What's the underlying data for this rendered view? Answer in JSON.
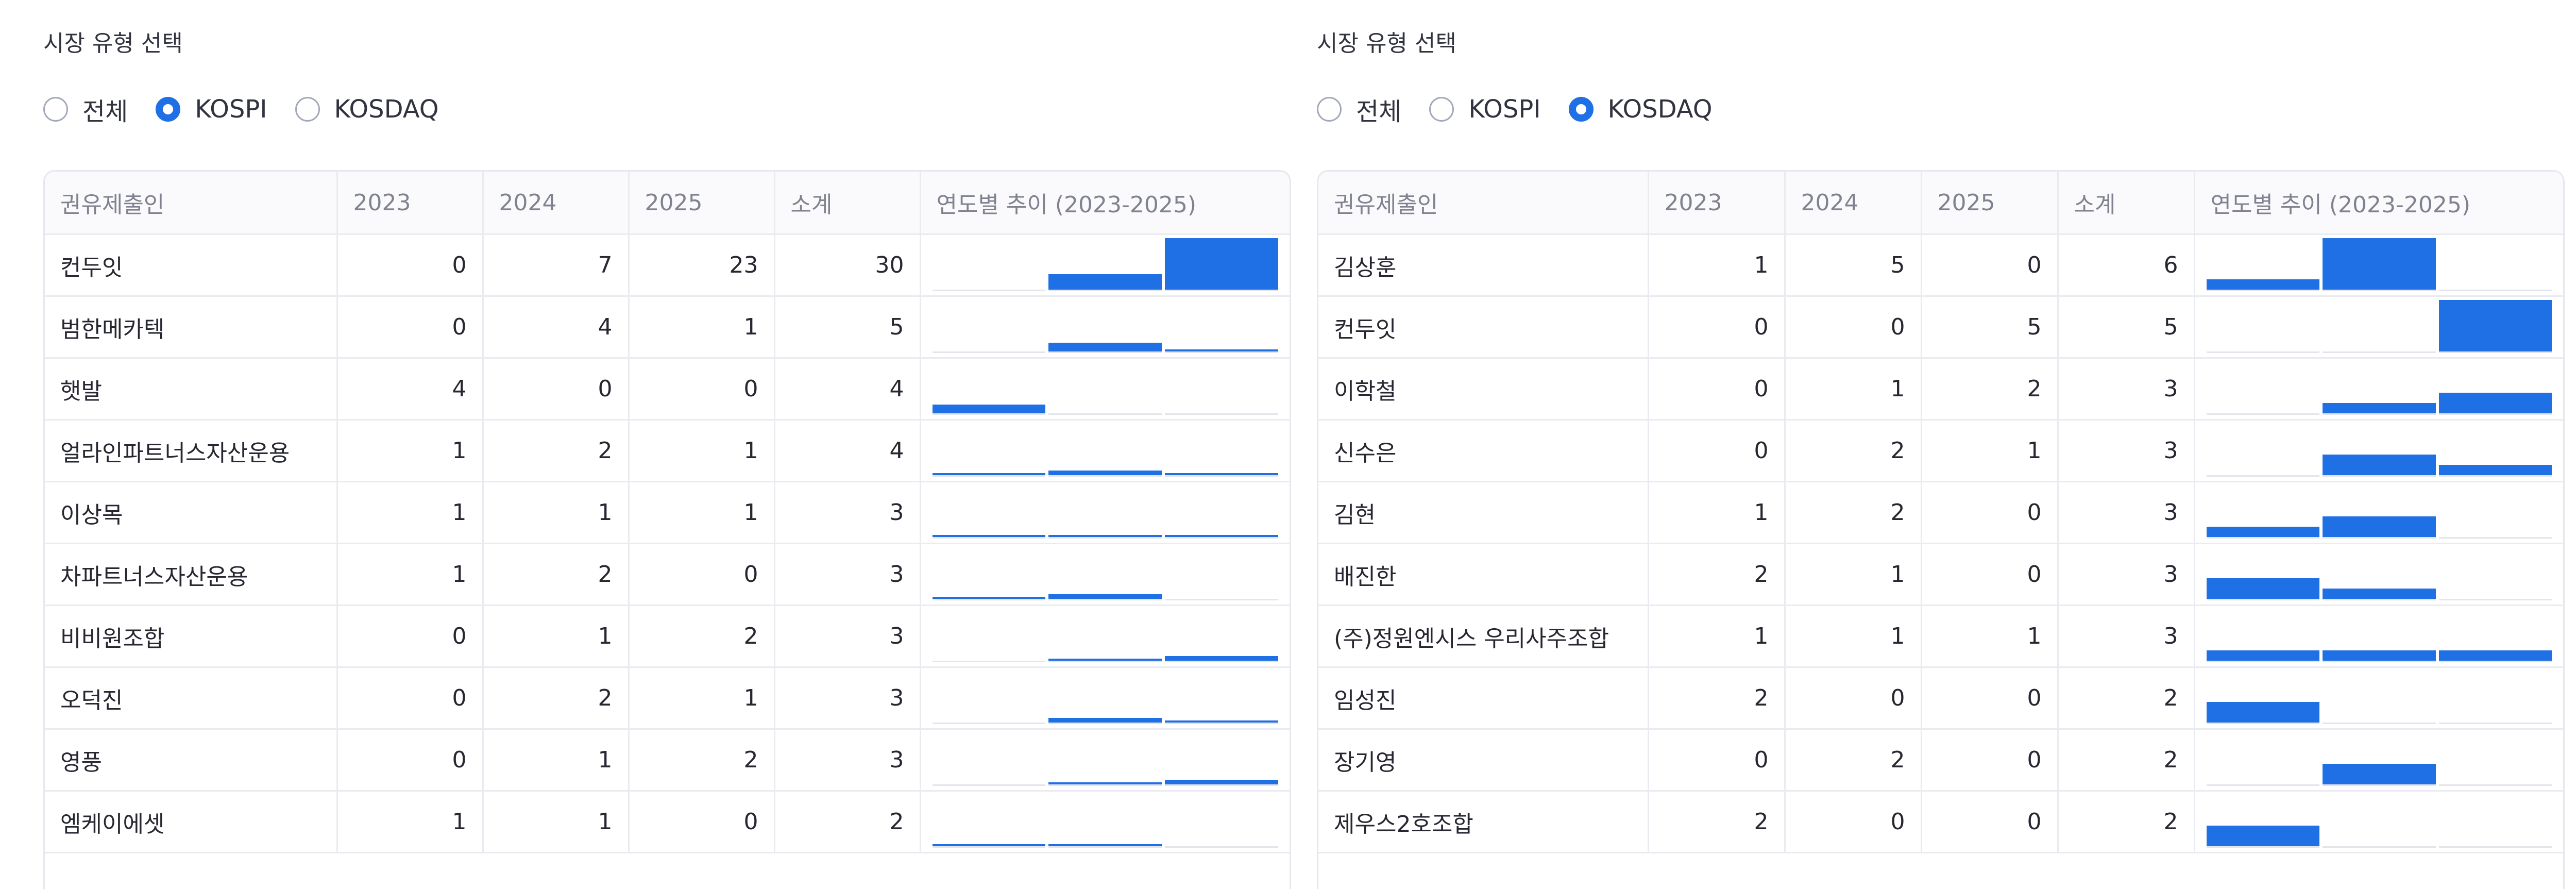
{
  "panels": [
    {
      "id": "kospi",
      "section_title": "시장 유형 선택",
      "radio_options": [
        {
          "label": "전체",
          "checked": false
        },
        {
          "label": "KOSPI",
          "checked": true
        },
        {
          "label": "KOSDAQ",
          "checked": false
        }
      ],
      "columns": [
        "권유제출인",
        "2023",
        "2024",
        "2025",
        "소계",
        "연도별 추이 (2023-2025)"
      ],
      "rows": [
        {
          "name": "컨두잇",
          "y2023": 0,
          "y2024": 7,
          "y2025": 23,
          "total": 30
        },
        {
          "name": "범한메카텍",
          "y2023": 0,
          "y2024": 4,
          "y2025": 1,
          "total": 5
        },
        {
          "name": "햇발",
          "y2023": 4,
          "y2024": 0,
          "y2025": 0,
          "total": 4
        },
        {
          "name": "얼라인파트너스자산운용",
          "y2023": 1,
          "y2024": 2,
          "y2025": 1,
          "total": 4
        },
        {
          "name": "이상목",
          "y2023": 1,
          "y2024": 1,
          "y2025": 1,
          "total": 3
        },
        {
          "name": "차파트너스자산운용",
          "y2023": 1,
          "y2024": 2,
          "y2025": 0,
          "total": 3
        },
        {
          "name": "비비원조합",
          "y2023": 0,
          "y2024": 1,
          "y2025": 2,
          "total": 3
        },
        {
          "name": "오덕진",
          "y2023": 0,
          "y2024": 2,
          "y2025": 1,
          "total": 3
        },
        {
          "name": "영풍",
          "y2023": 0,
          "y2024": 1,
          "y2025": 2,
          "total": 3
        },
        {
          "name": "엠케이에셋",
          "y2023": 1,
          "y2024": 1,
          "y2025": 0,
          "total": 2
        }
      ]
    },
    {
      "id": "kosdaq",
      "section_title": "시장 유형 선택",
      "radio_options": [
        {
          "label": "전체",
          "checked": false
        },
        {
          "label": "KOSPI",
          "checked": false
        },
        {
          "label": "KOSDAQ",
          "checked": true
        }
      ],
      "columns": [
        "권유제출인",
        "2023",
        "2024",
        "2025",
        "소계",
        "연도별 추이 (2023-2025)"
      ],
      "rows": [
        {
          "name": "김상훈",
          "y2023": 1,
          "y2024": 5,
          "y2025": 0,
          "total": 6
        },
        {
          "name": "컨두잇",
          "y2023": 0,
          "y2024": 0,
          "y2025": 5,
          "total": 5
        },
        {
          "name": "이학철",
          "y2023": 0,
          "y2024": 1,
          "y2025": 2,
          "total": 3
        },
        {
          "name": "신수은",
          "y2023": 0,
          "y2024": 2,
          "y2025": 1,
          "total": 3
        },
        {
          "name": "김현",
          "y2023": 1,
          "y2024": 2,
          "y2025": 0,
          "total": 3
        },
        {
          "name": "배진한",
          "y2023": 2,
          "y2024": 1,
          "y2025": 0,
          "total": 3
        },
        {
          "name": "(주)정원엔시스 우리사주조합",
          "y2023": 1,
          "y2024": 1,
          "y2025": 1,
          "total": 3
        },
        {
          "name": "임성진",
          "y2023": 2,
          "y2024": 0,
          "y2025": 0,
          "total": 2
        },
        {
          "name": "장기영",
          "y2023": 0,
          "y2024": 2,
          "y2025": 0,
          "total": 2
        },
        {
          "name": "제우스2호조합",
          "y2023": 2,
          "y2024": 0,
          "y2025": 0,
          "total": 2
        }
      ]
    }
  ],
  "colors": {
    "accent": "#1f6fe5",
    "grid": "#e9ebf0",
    "header_text": "#80838f"
  }
}
